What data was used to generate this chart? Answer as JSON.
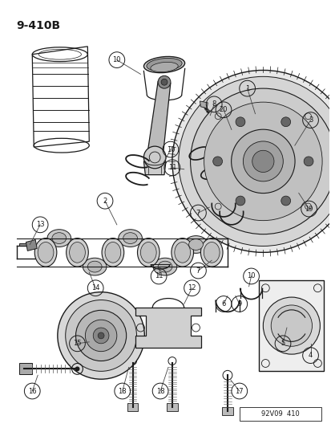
{
  "title": "9-410B",
  "bg_color": "#ffffff",
  "line_color": "#1a1a1a",
  "footer": "92V09  410",
  "fig_w": 4.14,
  "fig_h": 5.33,
  "dpi": 100
}
